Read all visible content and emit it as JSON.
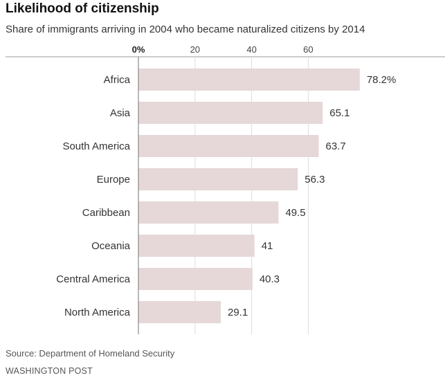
{
  "chart_data": {
    "type": "bar",
    "orientation": "horizontal",
    "title": "Likelihood of citizenship",
    "subtitle": "Share of immigrants arriving in 2004 who became naturalized citizens by 2014",
    "categories": [
      "Africa",
      "Asia",
      "South America",
      "Europe",
      "Caribbean",
      "Oceania",
      "Central America",
      "North America"
    ],
    "values": [
      78.2,
      65.1,
      63.7,
      56.3,
      49.5,
      41,
      40.3,
      29.1
    ],
    "value_labels": [
      "78.2%",
      "65.1",
      "63.7",
      "56.3",
      "49.5",
      "41",
      "40.3",
      "29.1"
    ],
    "tick_labels": [
      "0%",
      "20",
      "40",
      "60"
    ],
    "tick_values": [
      0,
      20,
      40,
      60
    ],
    "xlim": [
      0,
      80
    ],
    "grid": true,
    "bar_color": "#e6d8d8",
    "grid_color": "#dddddd",
    "axis_color": "#888888"
  },
  "footer": {
    "source": "Source: Department of Homeland Security",
    "credit": "WASHINGTON POST"
  }
}
